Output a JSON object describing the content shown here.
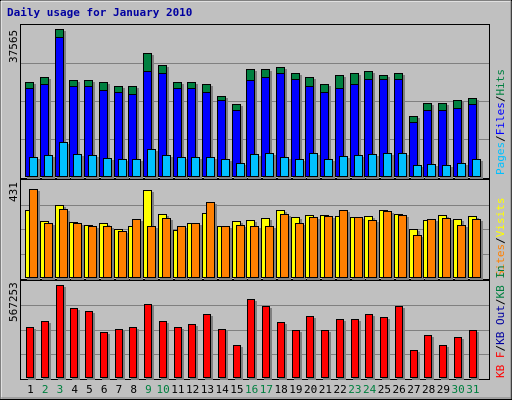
{
  "title": "Daily usage for January 2010",
  "colors": {
    "background": "#c0c0c0",
    "title": "#0000a0",
    "pages": "#00c0ff",
    "files": "#0000ff",
    "hits": "#008040",
    "visits": "#ffff00",
    "sites": "#ff8000",
    "kbin": "#008040",
    "kbout": "#0000a0",
    "kbf": "#ff0000",
    "weekend": "#008040",
    "weekday": "#000000"
  },
  "chart_data": [
    {
      "type": "bar",
      "panel": "pages-files-hits",
      "categories": [
        "1",
        "2",
        "3",
        "4",
        "5",
        "6",
        "7",
        "8",
        "9",
        "10",
        "11",
        "12",
        "13",
        "14",
        "15",
        "16",
        "17",
        "18",
        "19",
        "20",
        "21",
        "22",
        "23",
        "24",
        "25",
        "26",
        "27",
        "28",
        "29",
        "30",
        "31"
      ],
      "weekend": [
        "2",
        "3",
        "9",
        "10",
        "16",
        "17",
        "23",
        "24",
        "30",
        "31"
      ],
      "axis_max_label": "37565",
      "ylim": [
        0,
        37565
      ],
      "series": [
        {
          "name": "Hits",
          "values": [
            24000,
            25500,
            37565,
            24500,
            24500,
            24000,
            23000,
            23000,
            31500,
            28500,
            24000,
            24000,
            23500,
            20500,
            18500,
            27500,
            27500,
            28000,
            26500,
            25500,
            23500,
            26000,
            26500,
            27000,
            26000,
            26500,
            15500,
            18800,
            18800,
            19500,
            20000
          ]
        },
        {
          "name": "Files",
          "values": [
            22500,
            23500,
            35500,
            23000,
            23000,
            22000,
            21500,
            21000,
            27000,
            26500,
            22500,
            22500,
            21500,
            19500,
            17000,
            24500,
            25500,
            26500,
            25000,
            23000,
            21500,
            22500,
            23500,
            25000,
            25000,
            25000,
            14000,
            17000,
            17000,
            17500,
            18500
          ]
        },
        {
          "name": "Pages",
          "values": [
            5000,
            5500,
            9000,
            5800,
            5500,
            4800,
            4500,
            4600,
            7000,
            5500,
            5000,
            5000,
            5000,
            4600,
            3500,
            5800,
            6200,
            5000,
            4500,
            6000,
            4500,
            5400,
            5500,
            5900,
            6200,
            6200,
            3000,
            3200,
            3000,
            3600,
            4500
          ]
        }
      ],
      "legend": [
        "Pages",
        "Files",
        "Hits"
      ]
    },
    {
      "type": "bar",
      "panel": "visits-sites",
      "categories": [
        "1",
        "2",
        "3",
        "4",
        "5",
        "6",
        "7",
        "8",
        "9",
        "10",
        "11",
        "12",
        "13",
        "14",
        "15",
        "16",
        "17",
        "18",
        "19",
        "20",
        "21",
        "22",
        "23",
        "24",
        "25",
        "26",
        "27",
        "28",
        "29",
        "30",
        "31"
      ],
      "axis_max_label": "431",
      "ylim": [
        0,
        431
      ],
      "series": [
        {
          "name": "Visits",
          "values": [
            310,
            260,
            335,
            255,
            245,
            250,
            225,
            240,
            405,
            295,
            218,
            250,
            300,
            240,
            262,
            268,
            275,
            310,
            280,
            288,
            290,
            285,
            280,
            285,
            310,
            293,
            225,
            265,
            290,
            270,
            285
          ]
        },
        {
          "name": "Sites",
          "values": [
            410,
            250,
            315,
            250,
            240,
            240,
            215,
            270,
            240,
            275,
            240,
            250,
            350,
            240,
            243,
            240,
            240,
            295,
            250,
            280,
            285,
            310,
            280,
            265,
            305,
            290,
            195,
            270,
            275,
            245,
            270
          ]
        }
      ],
      "legend": [
        "Visits",
        "Sites"
      ]
    },
    {
      "type": "bar",
      "panel": "kbf",
      "categories": [
        "1",
        "2",
        "3",
        "4",
        "5",
        "6",
        "7",
        "8",
        "9",
        "10",
        "11",
        "12",
        "13",
        "14",
        "15",
        "16",
        "17",
        "18",
        "19",
        "20",
        "21",
        "22",
        "23",
        "24",
        "25",
        "26",
        "27",
        "28",
        "29",
        "30",
        "31"
      ],
      "axis_max_label": "567253",
      "ylim": [
        0,
        567253
      ],
      "series": [
        {
          "name": "KB F",
          "values": [
            310000,
            350000,
            567253,
            430000,
            410000,
            280000,
            300000,
            310000,
            450000,
            350000,
            310000,
            330000,
            390000,
            300000,
            200000,
            480000,
            440000,
            340000,
            290000,
            380000,
            290000,
            360000,
            360000,
            390000,
            370000,
            440000,
            170000,
            260000,
            200000,
            250000,
            290000
          ]
        }
      ],
      "legend": [
        "KB F",
        "KB Out",
        "KB In"
      ]
    }
  ]
}
